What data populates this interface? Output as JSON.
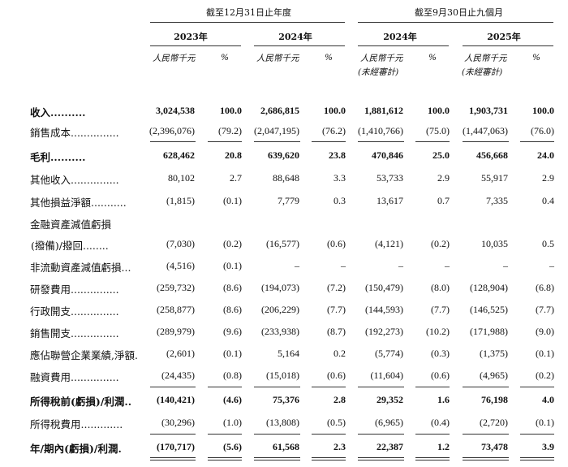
{
  "header": {
    "group1": "截至12月31日止年度",
    "group2": "截至9月30日止九個月",
    "years": [
      "2023年",
      "2024年",
      "2024年",
      "2025年"
    ],
    "unit": "人民幣千元",
    "unaudited": "(未經審計)",
    "pct": "%"
  },
  "rows": [
    {
      "label": "收入",
      "leader": "..........",
      "bold": true,
      "values": [
        "3,024,538",
        "100.0",
        "2,686,815",
        "100.0",
        "1,881,612",
        "100.0",
        "1,903,731",
        "100.0"
      ]
    },
    {
      "label": "銷售成本",
      "leader": "...............",
      "bold": false,
      "values": [
        "(2,396,076)",
        "(79.2)",
        "(2,047,195)",
        "(76.2)",
        "(1,410,766)",
        "(75.0)",
        "(1,447,063)",
        "(76.0)"
      ]
    },
    {
      "label": "毛利",
      "leader": "..........",
      "bold": true,
      "values": [
        "628,462",
        "20.8",
        "639,620",
        "23.8",
        "470,846",
        "25.0",
        "456,668",
        "24.0"
      ]
    },
    {
      "label": "其他收入",
      "leader": "...............",
      "bold": false,
      "values": [
        "80,102",
        "2.7",
        "88,648",
        "3.3",
        "53,733",
        "2.9",
        "55,917",
        "2.9"
      ]
    },
    {
      "label": "其他損益淨額",
      "leader": "...........",
      "bold": false,
      "values": [
        "(1,815)",
        "(0.1)",
        "7,779",
        "0.3",
        "13,617",
        "0.7",
        "7,335",
        "0.4"
      ]
    },
    {
      "label": "金融資產減值虧損",
      "leader": "",
      "bold": false,
      "values": [
        "",
        "",
        "",
        "",
        "",
        "",
        "",
        ""
      ]
    },
    {
      "label": "(撥備)/撥回",
      "leader": "........",
      "bold": false,
      "indent": true,
      "values": [
        "(7,030)",
        "(0.2)",
        "(16,577)",
        "(0.6)",
        "(4,121)",
        "(0.2)",
        "10,035",
        "0.5"
      ]
    },
    {
      "label": "非流動資產減值虧損",
      "leader": "...",
      "bold": false,
      "values": [
        "(4,516)",
        "(0.1)",
        "–",
        "–",
        "–",
        "–",
        "–",
        "–"
      ]
    },
    {
      "label": "研發費用",
      "leader": "...............",
      "bold": false,
      "values": [
        "(259,732)",
        "(8.6)",
        "(194,073)",
        "(7.2)",
        "(150,479)",
        "(8.0)",
        "(128,904)",
        "(6.8)"
      ]
    },
    {
      "label": "行政開支",
      "leader": "...............",
      "bold": false,
      "values": [
        "(258,877)",
        "(8.6)",
        "(206,229)",
        "(7.7)",
        "(144,593)",
        "(7.7)",
        "(146,525)",
        "(7.7)"
      ]
    },
    {
      "label": "銷售開支",
      "leader": "...............",
      "bold": false,
      "values": [
        "(289,979)",
        "(9.6)",
        "(233,938)",
        "(8.7)",
        "(192,273)",
        "(10.2)",
        "(171,988)",
        "(9.0)"
      ]
    },
    {
      "label": "應佔聯營企業業績,淨額",
      "leader": ".",
      "bold": false,
      "values": [
        "(2,601)",
        "(0.1)",
        "5,164",
        "0.2",
        "(5,774)",
        "(0.3)",
        "(1,375)",
        "(0.1)"
      ]
    },
    {
      "label": "融資費用",
      "leader": "...............",
      "bold": false,
      "values": [
        "(24,435)",
        "(0.8)",
        "(15,018)",
        "(0.6)",
        "(11,604)",
        "(0.6)",
        "(4,965)",
        "(0.2)"
      ]
    },
    {
      "label": "所得稅前(虧損)/利潤",
      "leader": "..",
      "bold": true,
      "values": [
        "(140,421)",
        "(4.6)",
        "75,376",
        "2.8",
        "29,352",
        "1.6",
        "76,198",
        "4.0"
      ]
    },
    {
      "label": "所得稅費用",
      "leader": ".............",
      "bold": false,
      "values": [
        "(30,296)",
        "(1.0)",
        "(13,808)",
        "(0.5)",
        "(6,965)",
        "(0.4)",
        "(2,720)",
        "(0.1)"
      ]
    },
    {
      "label": "年/期內(虧損)/利潤",
      "leader": ".",
      "bold": true,
      "values": [
        "(170,717)",
        "(5.6)",
        "61,568",
        "2.3",
        "22,387",
        "1.2",
        "73,478",
        "3.9"
      ]
    }
  ]
}
